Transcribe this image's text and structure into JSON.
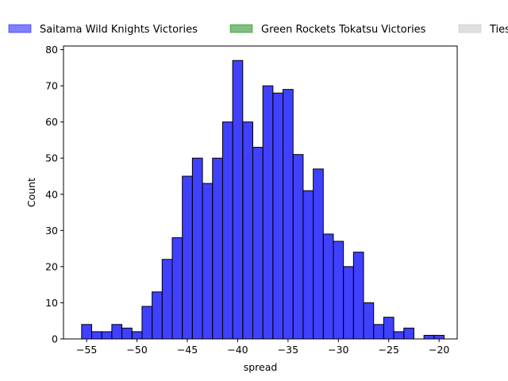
{
  "chart_data": {
    "type": "bar",
    "title": "",
    "xlabel": "spread",
    "ylabel": "Count",
    "xlim": [
      -57.3,
      -18.2
    ],
    "ylim": [
      0,
      81
    ],
    "x_ticks": [
      -55,
      -50,
      -45,
      -40,
      -35,
      -30,
      -25,
      -20
    ],
    "y_ticks": [
      0,
      10,
      20,
      30,
      40,
      50,
      60,
      70,
      80
    ],
    "bin_width": 1,
    "bin_starts": [
      -55.5,
      -54.5,
      -53.5,
      -52.5,
      -51.5,
      -50.5,
      -49.5,
      -48.5,
      -47.5,
      -46.5,
      -45.5,
      -44.5,
      -43.5,
      -42.5,
      -41.5,
      -40.5,
      -39.5,
      -38.5,
      -37.5,
      -36.5,
      -35.5,
      -34.5,
      -33.5,
      -32.5,
      -31.5,
      -30.5,
      -29.5,
      -28.5,
      -27.5,
      -26.5,
      -25.5,
      -24.5,
      -23.5,
      -22.5,
      -21.5,
      -20.5
    ],
    "series": [
      {
        "name": "Saitama Wild Knights Victories",
        "color": "#0000ff",
        "values": [
          4,
          2,
          2,
          4,
          3,
          2,
          9,
          13,
          22,
          28,
          45,
          50,
          43,
          50,
          60,
          77,
          60,
          53,
          70,
          68,
          69,
          51,
          41,
          47,
          29,
          27,
          20,
          24,
          10,
          4,
          6,
          2,
          3,
          0,
          1,
          1
        ]
      },
      {
        "name": "Green Rockets Tokatsu Victories",
        "color": "#008000",
        "values": []
      },
      {
        "name": "Ties",
        "color": "#c0c0c0",
        "values": []
      }
    ],
    "legend": {
      "placement": "top",
      "entries": [
        {
          "label": "Saitama Wild Knights Victories",
          "color": "#0000ff"
        },
        {
          "label": "Green Rockets Tokatsu Victories",
          "color": "#008000"
        },
        {
          "label": "Ties",
          "color": "#c0c0c0"
        }
      ]
    }
  }
}
